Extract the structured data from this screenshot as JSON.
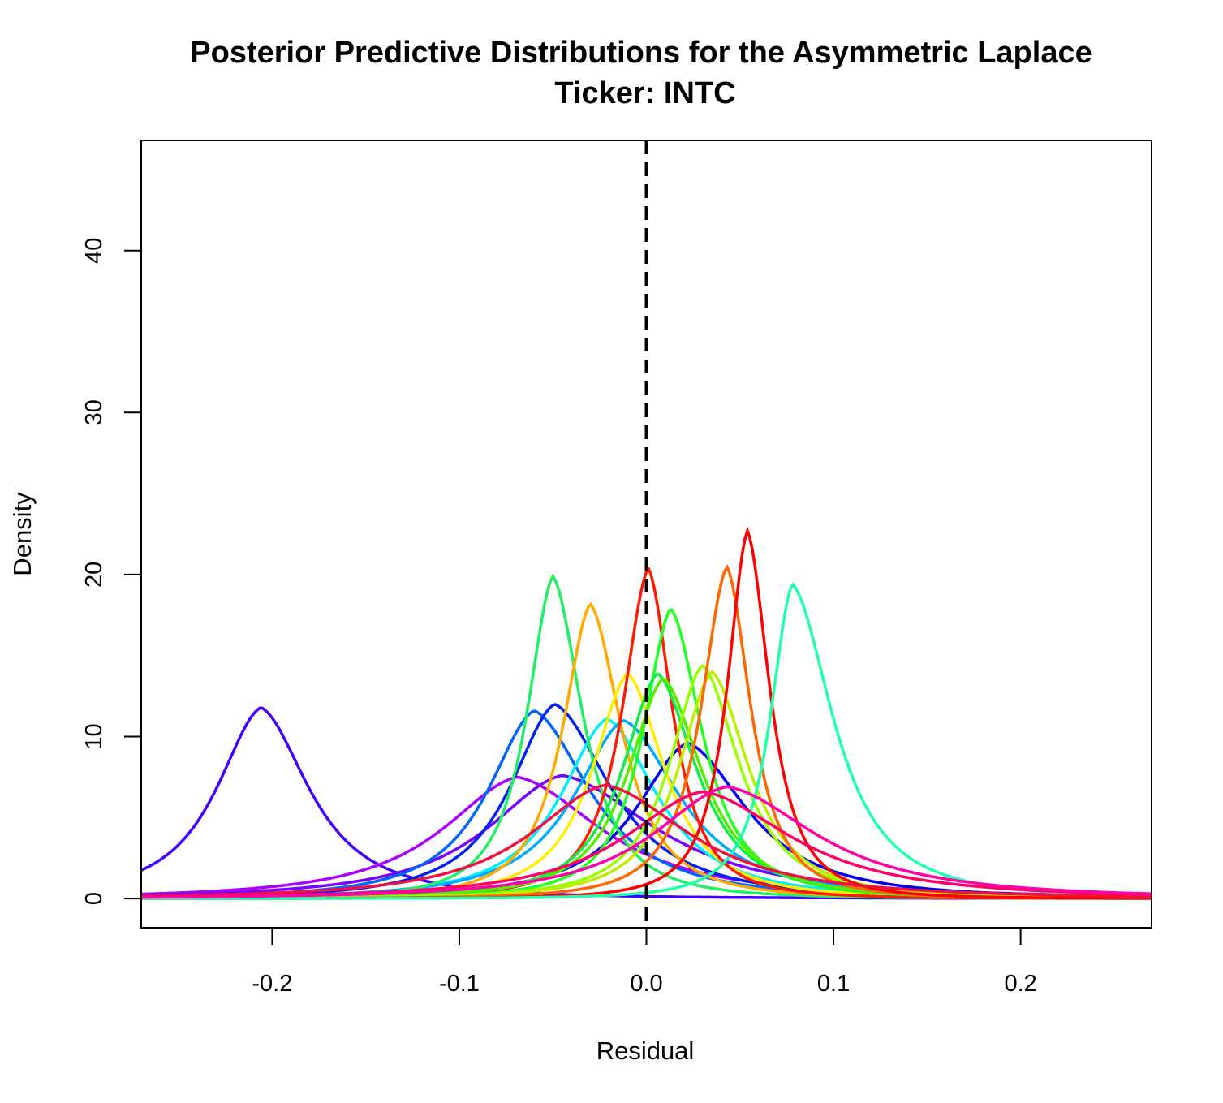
{
  "chart_data": {
    "type": "line",
    "title": "Posterior Predictive Distributions for the Asymmetric Laplace",
    "subtitle": "Ticker: INTC",
    "xlabel": "Residual",
    "ylabel": "Density",
    "xlim": [
      -0.27,
      0.27
    ],
    "ylim": [
      -1.8,
      46.8
    ],
    "x_ticks": [
      -0.2,
      -0.1,
      0.0,
      0.1,
      0.2
    ],
    "x_tick_labels": [
      "-0.2",
      "-0.1",
      "0.0",
      "0.1",
      "0.2"
    ],
    "y_ticks": [
      0,
      10,
      20,
      30,
      40
    ],
    "y_tick_labels": [
      "0",
      "10",
      "20",
      "30",
      "40"
    ],
    "grid": false,
    "reference_line": {
      "x": 0.0,
      "style": "dashed",
      "color": "#000000"
    },
    "series": [
      {
        "color": "#4400ff",
        "mode": -0.206,
        "peak": 11.8,
        "sl": 0.024,
        "sr": 0.026
      },
      {
        "color": "#aa00ff",
        "mode": -0.069,
        "peak": 7.5,
        "sl": 0.04,
        "sr": 0.045
      },
      {
        "color": "#7700ff",
        "mode": -0.045,
        "peak": 7.6,
        "sl": 0.04,
        "sr": 0.05
      },
      {
        "color": "#0066ff",
        "mode": -0.06,
        "peak": 11.6,
        "sl": 0.025,
        "sr": 0.03
      },
      {
        "color": "#0022ee",
        "mode": -0.049,
        "peak": 12.0,
        "sl": 0.024,
        "sr": 0.03
      },
      {
        "color": "#00eeff",
        "mode": -0.021,
        "peak": 11.1,
        "sl": 0.025,
        "sr": 0.027
      },
      {
        "color": "#00aaff",
        "mode": -0.012,
        "peak": 11.0,
        "sl": 0.027,
        "sr": 0.03
      },
      {
        "color": "#0000ee",
        "mode": 0.022,
        "peak": 9.6,
        "sl": 0.028,
        "sr": 0.032
      },
      {
        "color": "#22ee66",
        "mode": -0.05,
        "peak": 19.9,
        "sl": 0.014,
        "sr": 0.016
      },
      {
        "color": "#ffaa00",
        "mode": -0.03,
        "peak": 18.2,
        "sl": 0.015,
        "sr": 0.017
      },
      {
        "color": "#ffee00",
        "mode": -0.01,
        "peak": 13.9,
        "sl": 0.019,
        "sr": 0.02
      },
      {
        "color": "#ff1a00",
        "mode": 0.001,
        "peak": 20.4,
        "sl": 0.014,
        "sr": 0.013
      },
      {
        "color": "#22ff22",
        "mode": 0.013,
        "peak": 17.9,
        "sl": 0.015,
        "sr": 0.017
      },
      {
        "color": "#11ee44",
        "mode": 0.006,
        "peak": 13.9,
        "sl": 0.019,
        "sr": 0.021
      },
      {
        "color": "#55ee00",
        "mode": 0.009,
        "peak": 13.6,
        "sl": 0.019,
        "sr": 0.021
      },
      {
        "color": "#99ff00",
        "mode": 0.03,
        "peak": 14.4,
        "sl": 0.018,
        "sr": 0.02
      },
      {
        "color": "#bbee00",
        "mode": 0.035,
        "peak": 14.0,
        "sl": 0.018,
        "sr": 0.02
      },
      {
        "color": "#ff6600",
        "mode": 0.043,
        "peak": 20.5,
        "sl": 0.014,
        "sr": 0.013
      },
      {
        "color": "#ff0000",
        "mode": 0.054,
        "peak": 22.7,
        "sl": 0.011,
        "sr": 0.012
      },
      {
        "color": "#22ffaa",
        "mode": 0.078,
        "peak": 19.4,
        "sl": 0.012,
        "sr": 0.022
      },
      {
        "color": "#ee1144",
        "mode": -0.022,
        "peak": 7.0,
        "sl": 0.04,
        "sr": 0.045
      },
      {
        "color": "#ff0066",
        "mode": 0.03,
        "peak": 6.6,
        "sl": 0.042,
        "sr": 0.048
      },
      {
        "color": "#ff00aa",
        "mode": 0.043,
        "peak": 6.9,
        "sl": 0.04,
        "sr": 0.048
      }
    ]
  }
}
